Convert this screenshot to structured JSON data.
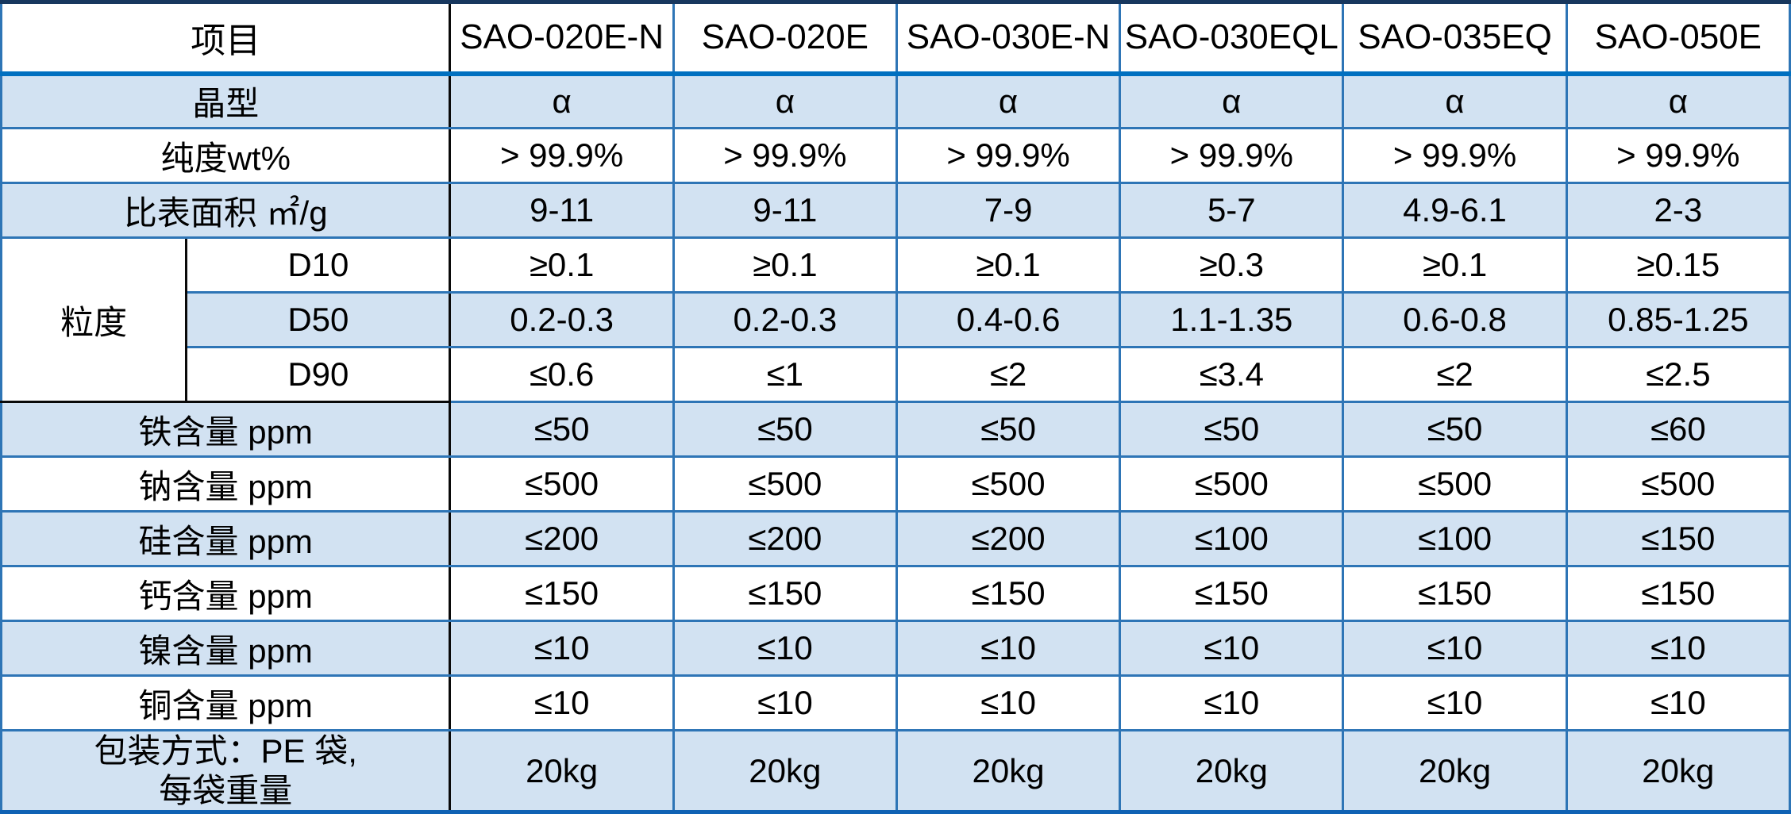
{
  "header": {
    "item": "项目",
    "cols": [
      "SAO-020E-N",
      "SAO-020E",
      "SAO-030E-N",
      "SAO-030EQL",
      "SAO-035EQ",
      "SAO-050E"
    ]
  },
  "rows": {
    "crystal": {
      "label": "晶型",
      "v": [
        "α",
        "α",
        "α",
        "α",
        "α",
        "α"
      ]
    },
    "purity": {
      "label": "纯度wt%",
      "v": [
        "> 99.9%",
        "> 99.9%",
        "> 99.9%",
        "> 99.9%",
        "> 99.9%",
        "> 99.9%"
      ]
    },
    "ssa": {
      "label": "比表面积 ㎡/g",
      "v": [
        "9-11",
        "9-11",
        "7-9",
        "5-7",
        "4.9-6.1",
        "2-3"
      ]
    },
    "psize_label": "粒度",
    "d10": {
      "label": "D10",
      "v": [
        "≥0.1",
        "≥0.1",
        "≥0.1",
        "≥0.3",
        "≥0.1",
        "≥0.15"
      ]
    },
    "d50": {
      "label": "D50",
      "v": [
        "0.2-0.3",
        "0.2-0.3",
        "0.4-0.6",
        "1.1-1.35",
        "0.6-0.8",
        "0.85-1.25"
      ]
    },
    "d90": {
      "label": "D90",
      "v": [
        "≤0.6",
        "≤1",
        "≤2",
        "≤3.4",
        "≤2",
        "≤2.5"
      ]
    },
    "fe": {
      "label": "铁含量 ppm",
      "v": [
        "≤50",
        "≤50",
        "≤50",
        "≤50",
        "≤50",
        "≤60"
      ]
    },
    "na": {
      "label": "钠含量 ppm",
      "v": [
        "≤500",
        "≤500",
        "≤500",
        "≤500",
        "≤500",
        "≤500"
      ]
    },
    "si": {
      "label": "硅含量 ppm",
      "v": [
        "≤200",
        "≤200",
        "≤200",
        "≤100",
        "≤100",
        "≤150"
      ]
    },
    "ca": {
      "label": "钙含量 ppm",
      "v": [
        "≤150",
        "≤150",
        "≤150",
        "≤150",
        "≤150",
        "≤150"
      ]
    },
    "ni": {
      "label": "镍含量 ppm",
      "v": [
        "≤10",
        "≤10",
        "≤10",
        "≤10",
        "≤10",
        "≤10"
      ]
    },
    "cu": {
      "label": "铜含量 ppm",
      "v": [
        "≤10",
        "≤10",
        "≤10",
        "≤10",
        "≤10",
        "≤10"
      ]
    },
    "pack": {
      "label_line1": "包装方式：PE 袋,",
      "label_line2": "每袋重量",
      "v": [
        "20kg",
        "20kg",
        "20kg",
        "20kg",
        "20kg",
        "20kg"
      ]
    }
  },
  "colors": {
    "row_shade_blue": "#D2E2F2",
    "row_shade_white": "#FFFFFF",
    "grid_line": "#2E75B6",
    "header_underline": "#0070C0",
    "outer_border_top": "#17375E",
    "outer_border_bottom": "#1062B4",
    "label_separator": "#0A0A0A",
    "text": "#000000"
  }
}
